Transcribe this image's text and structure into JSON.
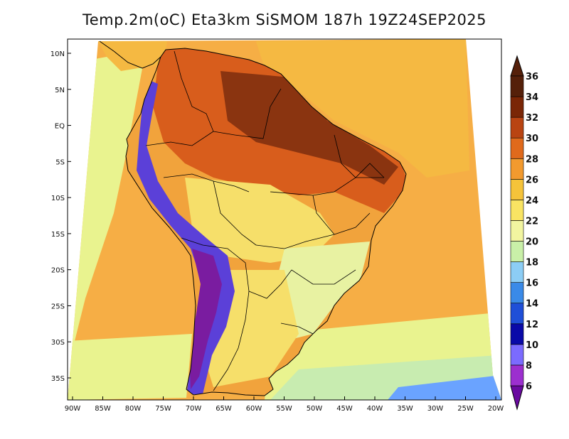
{
  "title": "Temp.2m(oC) Eta3km SiSMOM 187h 19Z24SEP2025",
  "map": {
    "variable": "2 m air temperature",
    "units": "oC",
    "model": "Eta3km SiSMOM",
    "forecast_hour": "187h",
    "valid_time": "19Z24SEP2025",
    "region": "South America",
    "lon_range": [
      -91,
      -20
    ],
    "lat_range": [
      -38,
      12
    ],
    "lon_ticks": [
      {
        "value": -90,
        "label": "90W"
      },
      {
        "value": -85,
        "label": "85W"
      },
      {
        "value": -80,
        "label": "80W"
      },
      {
        "value": -75,
        "label": "75W"
      },
      {
        "value": -70,
        "label": "70W"
      },
      {
        "value": -65,
        "label": "65W"
      },
      {
        "value": -60,
        "label": "60W"
      },
      {
        "value": -55,
        "label": "55W"
      },
      {
        "value": -50,
        "label": "50W"
      },
      {
        "value": -45,
        "label": "45W"
      },
      {
        "value": -40,
        "label": "40W"
      },
      {
        "value": -35,
        "label": "35W"
      },
      {
        "value": -30,
        "label": "30W"
      },
      {
        "value": -25,
        "label": "25W"
      },
      {
        "value": -20,
        "label": "20W"
      }
    ],
    "lat_ticks": [
      {
        "value": 10,
        "label": "10N"
      },
      {
        "value": 5,
        "label": "5N"
      },
      {
        "value": 0,
        "label": "EQ"
      },
      {
        "value": -5,
        "label": "5S"
      },
      {
        "value": -10,
        "label": "10S"
      },
      {
        "value": -15,
        "label": "15S"
      },
      {
        "value": -20,
        "label": "20S"
      },
      {
        "value": -25,
        "label": "25S"
      },
      {
        "value": -30,
        "label": "30S"
      },
      {
        "value": -35,
        "label": "35S"
      }
    ]
  },
  "colorbar": {
    "levels": [
      "6",
      "8",
      "10",
      "12",
      "14",
      "16",
      "18",
      "20",
      "22",
      "24",
      "26",
      "28",
      "30",
      "32",
      "34",
      "36"
    ],
    "colors": [
      "#6a0aa0",
      "#9c2fcf",
      "#7b6bff",
      "#0a0aa8",
      "#1f4fd8",
      "#3a8ae8",
      "#8ccdf5",
      "#c9f0a8",
      "#f2f5a0",
      "#f9e463",
      "#f5c33a",
      "#f29a2e",
      "#e06a1c",
      "#b94412",
      "#7a2606",
      "#55200a"
    ]
  },
  "palette": {
    "ocean": "#f6ae45",
    "ocean_warm": "#f5b942",
    "ocean_cool": "#e9f38f",
    "ocean_south": "#c8ecb0",
    "coast_blue": "#6aa3ff",
    "land_hot": "#d85d1c",
    "land_hottest": "#8a3410",
    "land_warm": "#f1a33c",
    "land_mild": "#f6df6a",
    "land_cool": "#e8f2a2",
    "andes": "#5b40d8",
    "andes_high": "#7a1ca0",
    "border": "#000000",
    "outline": "#000000"
  }
}
